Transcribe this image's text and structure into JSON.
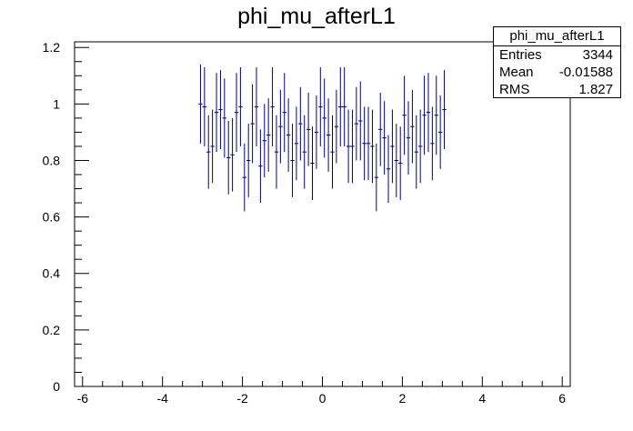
{
  "chart_data": {
    "type": "scatter",
    "title": "phi_mu_afterL1",
    "xlabel": "",
    "ylabel": "",
    "xlim": [
      -6.2,
      6.2
    ],
    "ylim": [
      0,
      1.22
    ],
    "xticks": [
      -6,
      -4,
      -2,
      0,
      2,
      4,
      6
    ],
    "xtick_labels": [
      "-6",
      "-4",
      "-2",
      "0",
      "2",
      "4",
      "6"
    ],
    "yticks": [
      0,
      0.2,
      0.4,
      0.6,
      0.8,
      1,
      1.2
    ],
    "ytick_labels": [
      "0",
      "0.2",
      "0.4",
      "0.6",
      "0.8",
      "1",
      "1.2"
    ],
    "grid": false,
    "legend": "none",
    "marker_color": "#000080",
    "series": [
      {
        "bin_width": 0.1,
        "x": [
          -3.05,
          -2.95,
          -2.85,
          -2.75,
          -2.65,
          -2.55,
          -2.45,
          -2.35,
          -2.25,
          -2.15,
          -2.05,
          -1.95,
          -1.85,
          -1.75,
          -1.65,
          -1.55,
          -1.45,
          -1.35,
          -1.25,
          -1.15,
          -1.05,
          -0.95,
          -0.85,
          -0.75,
          -0.65,
          -0.55,
          -0.45,
          -0.35,
          -0.25,
          -0.15,
          -0.05,
          0.05,
          0.15,
          0.25,
          0.35,
          0.45,
          0.55,
          0.65,
          0.75,
          0.85,
          0.95,
          1.05,
          1.15,
          1.25,
          1.35,
          1.45,
          1.55,
          1.65,
          1.75,
          1.85,
          1.95,
          2.05,
          2.15,
          2.25,
          2.35,
          2.45,
          2.55,
          2.65,
          2.75,
          2.85,
          2.95,
          3.05
        ],
        "y": [
          1.0,
          0.99,
          0.83,
          0.85,
          0.97,
          0.98,
          0.95,
          0.81,
          0.82,
          0.97,
          0.99,
          0.74,
          0.8,
          0.93,
          0.99,
          0.78,
          0.87,
          0.89,
          0.99,
          0.83,
          0.92,
          0.97,
          0.89,
          0.8,
          0.86,
          0.93,
          0.83,
          0.91,
          0.79,
          0.9,
          0.99,
          0.95,
          0.89,
          0.83,
          0.92,
          0.99,
          0.99,
          0.85,
          0.85,
          0.93,
          0.94,
          0.86,
          0.86,
          0.85,
          0.74,
          0.91,
          0.88,
          0.77,
          0.85,
          0.8,
          0.79,
          0.96,
          0.88,
          0.92,
          0.83,
          0.85,
          0.96,
          0.97,
          0.86,
          0.96,
          0.9,
          0.98
        ],
        "yerr": [
          0.14,
          0.14,
          0.13,
          0.13,
          0.14,
          0.14,
          0.14,
          0.13,
          0.13,
          0.14,
          0.14,
          0.12,
          0.13,
          0.14,
          0.14,
          0.13,
          0.13,
          0.13,
          0.14,
          0.13,
          0.13,
          0.14,
          0.13,
          0.13,
          0.13,
          0.13,
          0.13,
          0.13,
          0.13,
          0.13,
          0.14,
          0.14,
          0.13,
          0.13,
          0.13,
          0.14,
          0.14,
          0.13,
          0.13,
          0.13,
          0.14,
          0.13,
          0.13,
          0.13,
          0.12,
          0.13,
          0.13,
          0.12,
          0.13,
          0.13,
          0.13,
          0.14,
          0.13,
          0.13,
          0.13,
          0.13,
          0.14,
          0.14,
          0.13,
          0.14,
          0.13,
          0.14
        ]
      }
    ],
    "stats": {
      "title": "phi_mu_afterL1",
      "rows": [
        {
          "label": "Entries",
          "value": "3344"
        },
        {
          "label": "Mean",
          "value": "-0.01588"
        },
        {
          "label": "RMS",
          "value": "1.827"
        }
      ]
    }
  }
}
